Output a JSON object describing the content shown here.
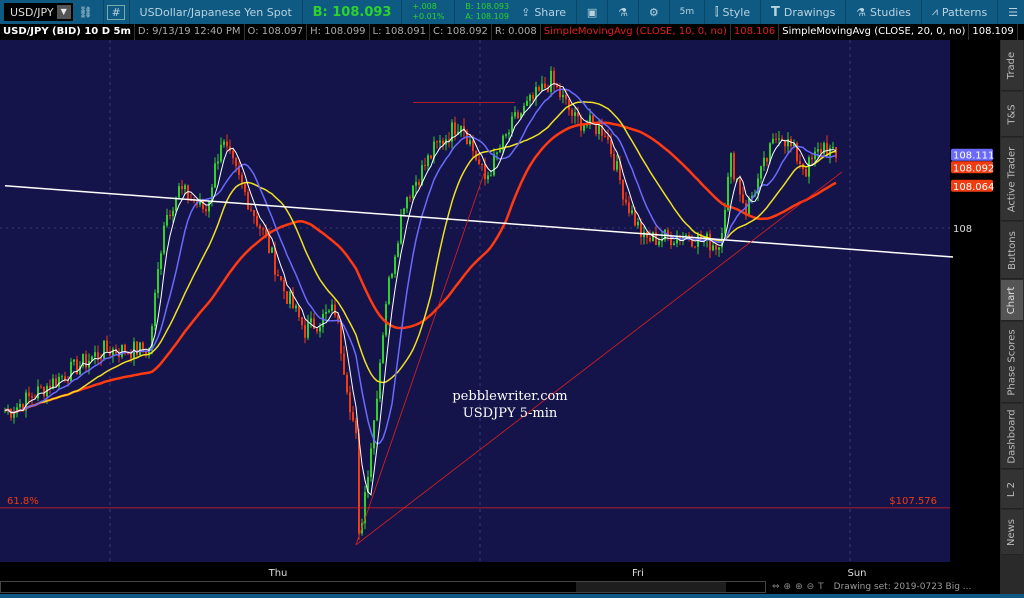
{
  "toolbar": {
    "symbol": "USD/JPY",
    "symbol_desc": "USDollar/Japanese Yen Spot",
    "bid_big": "B: 108.093",
    "change": "+.008",
    "change_pct": "+0.01%",
    "bid": "B: 108.093",
    "ask": "A: 108.109",
    "share": "Share",
    "timeframe": "5m",
    "style": "Style",
    "drawings": "Drawings",
    "studies": "Studies",
    "patterns": "Patterns",
    "hash": "#"
  },
  "info": {
    "title": "USD/JPY (BID) 10 D 5m",
    "date": "D: 9/13/19 12:40 PM",
    "open": "O: 108.097",
    "high": "H: 108.099",
    "low": "L: 108.091",
    "close": "C: 108.092",
    "range": "R: 0.008",
    "sma10_label": "SimpleMovingAvg (CLOSE, 10, 0, no)",
    "sma10_value": "108.106",
    "sma20_label": "SimpleMovingAvg (CLOSE, 20, 0, no)",
    "sma20_value": "108.109"
  },
  "price_axis": {
    "tick": "108",
    "badges": [
      {
        "text": "108.111",
        "color": "#6a6aff",
        "price": 108.111
      },
      {
        "text": "108.092",
        "color": "#f03c10",
        "price": 108.092
      },
      {
        "text": "108.064",
        "color": "#f03c10",
        "price": 108.064
      }
    ]
  },
  "fib": {
    "label": "61.8%",
    "price_label": "$107.576",
    "price": 107.576
  },
  "watermark": {
    "line1": "pebblewriter.com",
    "line2": "USDJPY 5-min"
  },
  "time_axis": [
    {
      "label": "Thu",
      "bar": 91
    },
    {
      "label": "Fri",
      "bar": 211
    },
    {
      "label": "Sun",
      "bar": 284
    }
  ],
  "sidebar": [
    "Trade",
    "T&S",
    "Active Trader",
    "Buttons",
    "Chart",
    "Phase Scores",
    "Dashboard",
    "L 2",
    "News"
  ],
  "sidebar_active": "Chart",
  "status": {
    "drawing_set": "Drawing set: 2019-0723 Big ..."
  },
  "colors": {
    "background": "#14144a",
    "up": "#2ed12e",
    "down": "#f03c10",
    "sma_fast": "#ffffff",
    "sma_blue": "#6a6aff",
    "sma_yellow": "#f0e020",
    "sma_red": "#ff3a10"
  },
  "chart_data": {
    "type": "candlestick",
    "interval": "5m",
    "price_range": [
      107.52,
      108.27
    ],
    "close_path": [
      [
        2,
        107.724
      ],
      [
        17,
        107.77
      ],
      [
        33,
        107.815
      ],
      [
        48,
        107.815
      ],
      [
        53,
        108.012
      ],
      [
        58,
        108.058
      ],
      [
        67,
        108.027
      ],
      [
        72,
        108.133
      ],
      [
        78,
        108.073
      ],
      [
        87,
        107.982
      ],
      [
        93,
        107.906
      ],
      [
        100,
        107.845
      ],
      [
        110,
        107.876
      ],
      [
        117,
        107.679
      ],
      [
        118,
        107.527
      ],
      [
        123,
        107.709
      ],
      [
        127,
        107.891
      ],
      [
        133,
        108.042
      ],
      [
        143,
        108.118
      ],
      [
        152,
        108.164
      ],
      [
        160,
        108.073
      ],
      [
        170,
        108.164
      ],
      [
        182,
        108.224
      ],
      [
        190,
        108.164
      ],
      [
        200,
        108.148
      ],
      [
        207,
        108.042
      ],
      [
        213,
        107.982
      ],
      [
        227,
        107.989
      ],
      [
        238,
        107.974
      ],
      [
        242,
        108.103
      ],
      [
        247,
        108.027
      ],
      [
        258,
        108.148
      ],
      [
        267,
        108.088
      ],
      [
        273,
        108.126
      ],
      [
        277,
        108.103
      ]
    ],
    "drawings": [
      {
        "type": "trendline",
        "color": "#ffffff",
        "from": [
          0,
          108.064
        ],
        "to": [
          316,
          107.956
        ]
      },
      {
        "type": "trendline",
        "color": "#e0201e",
        "from": [
          117,
          107.52
        ],
        "to": [
          279,
          108.085
        ]
      },
      {
        "type": "trendline",
        "color": "#e0201e",
        "from": [
          117,
          107.52
        ],
        "to": [
          160,
          108.087
        ]
      },
      {
        "type": "hline",
        "color": "#e0201e",
        "from": [
          136,
          108.19
        ],
        "to": [
          170,
          108.19
        ]
      }
    ]
  }
}
